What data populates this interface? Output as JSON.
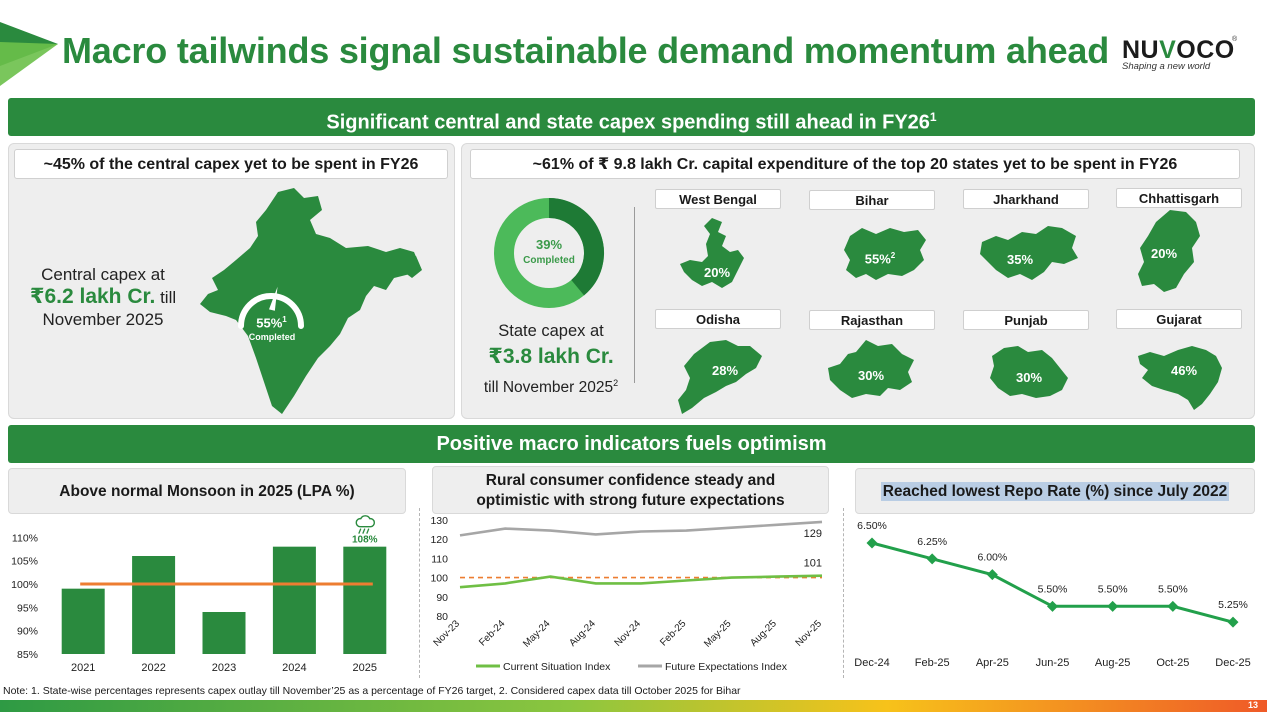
{
  "header": {
    "title": "Macro tailwinds signal sustainable demand momentum ahead",
    "logo": {
      "word_pre": "NU",
      "word_v": "V",
      "word_o": "O",
      "word_post": "CO",
      "reg": "®",
      "tagline": "Shaping a new world"
    }
  },
  "section1": {
    "banner": "Significant central and state capex spending still ahead in FY26",
    "banner_sup": "1",
    "left": {
      "heading": "~45% of the central capex yet to be spent in FY26",
      "line1": "Central capex at",
      "amount": "₹6.2 lakh Cr.",
      "line2_suffix": " till",
      "line3": "November 2025",
      "gauge_pct": "55%",
      "gauge_sup": "1",
      "gauge_label": "Completed",
      "gauge_value": 55
    },
    "right": {
      "heading": "~61% of ₹ 9.8 lakh Cr. capital expenditure of the top 20 states yet to be spent in FY26",
      "donut_pct": "39%",
      "donut_label": "Completed",
      "donut_value": 39,
      "line1": "State capex at",
      "amount": "₹3.8 lakh Cr.",
      "line3": "till November 2025",
      "line3_sup": "2",
      "states": [
        {
          "name": "West Bengal",
          "pct": "20%",
          "sup": ""
        },
        {
          "name": "Bihar",
          "pct": "55%",
          "sup": "2"
        },
        {
          "name": "Jharkhand",
          "pct": "35%",
          "sup": ""
        },
        {
          "name": "Chhattisgarh",
          "pct": "20%",
          "sup": ""
        },
        {
          "name": "Odisha",
          "pct": "28%",
          "sup": ""
        },
        {
          "name": "Rajasthan",
          "pct": "30%",
          "sup": ""
        },
        {
          "name": "Punjab",
          "pct": "30%",
          "sup": ""
        },
        {
          "name": "Gujarat",
          "pct": "46%",
          "sup": ""
        }
      ]
    }
  },
  "section2": {
    "banner": "Positive macro indicators fuels optimism",
    "monsoon_heading": "Above normal Monsoon in 2025 (LPA %)",
    "confidence_heading_1": "Rural consumer confidence steady and",
    "confidence_heading_2": "optimistic with strong future expectations",
    "repo_heading": "Reached lowest Repo Rate (%) since July 2022"
  },
  "chart_data": [
    {
      "type": "bar",
      "title": "Above normal Monsoon in 2025 (LPA %)",
      "categories": [
        "2021",
        "2022",
        "2023",
        "2024",
        "2025"
      ],
      "values": [
        99,
        106,
        94,
        108,
        108
      ],
      "reference_line": 100,
      "ylim": [
        85,
        112
      ],
      "yticks": [
        "85%",
        "90%",
        "95%",
        "100%",
        "105%",
        "110%"
      ],
      "ytick_values": [
        85,
        90,
        95,
        100,
        105,
        110
      ],
      "data_labels": {
        "2025": "108%"
      },
      "colors": {
        "bar": "#2a8a3e",
        "reference": "#ed7d31"
      }
    },
    {
      "type": "line",
      "title": "Rural consumer confidence steady and optimistic with strong future expectations",
      "x": [
        "Nov-23",
        "Feb-24",
        "May-24",
        "Aug-24",
        "Nov-24",
        "Feb-25",
        "May-25",
        "Aug-25",
        "Nov-25"
      ],
      "ylim": [
        80,
        130
      ],
      "yticks": [
        "80",
        "90",
        "100",
        "110",
        "120",
        "130"
      ],
      "ytick_values": [
        80,
        90,
        100,
        110,
        120,
        130
      ],
      "series": [
        {
          "name": "Current Situation Index",
          "values": [
            95,
            97,
            100.5,
            97,
            97,
            98.5,
            100,
            100.5,
            101
          ],
          "color": "#6fbf44",
          "end_label": "101"
        },
        {
          "name": "Future Expectations Index",
          "values": [
            122,
            125.5,
            124.5,
            122.5,
            124,
            124.5,
            126,
            127.5,
            129
          ],
          "color": "#a6a6a6",
          "end_label": "129"
        }
      ],
      "reference_line": 100,
      "reference_color": "#ed7d31"
    },
    {
      "type": "line",
      "title": "Reached lowest Repo Rate (%) since July 2022",
      "x": [
        "Dec-24",
        "Feb-25",
        "Apr-25",
        "Jun-25",
        "Aug-25",
        "Oct-25",
        "Dec-25"
      ],
      "values": [
        6.5,
        6.25,
        6.0,
        5.5,
        5.5,
        5.5,
        5.25
      ],
      "data_labels": [
        "6.50%",
        "6.25%",
        "6.00%",
        "5.50%",
        "5.50%",
        "5.50%",
        "5.25%"
      ],
      "ylim": [
        5.0,
        6.8
      ],
      "color": "#22a04b"
    }
  ],
  "footer": {
    "note": "Note: 1. State-wise percentages represents capex outlay till November’25 as a percentage of FY26 target, 2. Considered capex data till October 2025 for Bihar",
    "page": "13"
  },
  "colors": {
    "brand_green": "#2a8a3e",
    "light_green": "#4cba5a",
    "dark_green": "#1e7a35",
    "panel": "#eeeeee"
  }
}
